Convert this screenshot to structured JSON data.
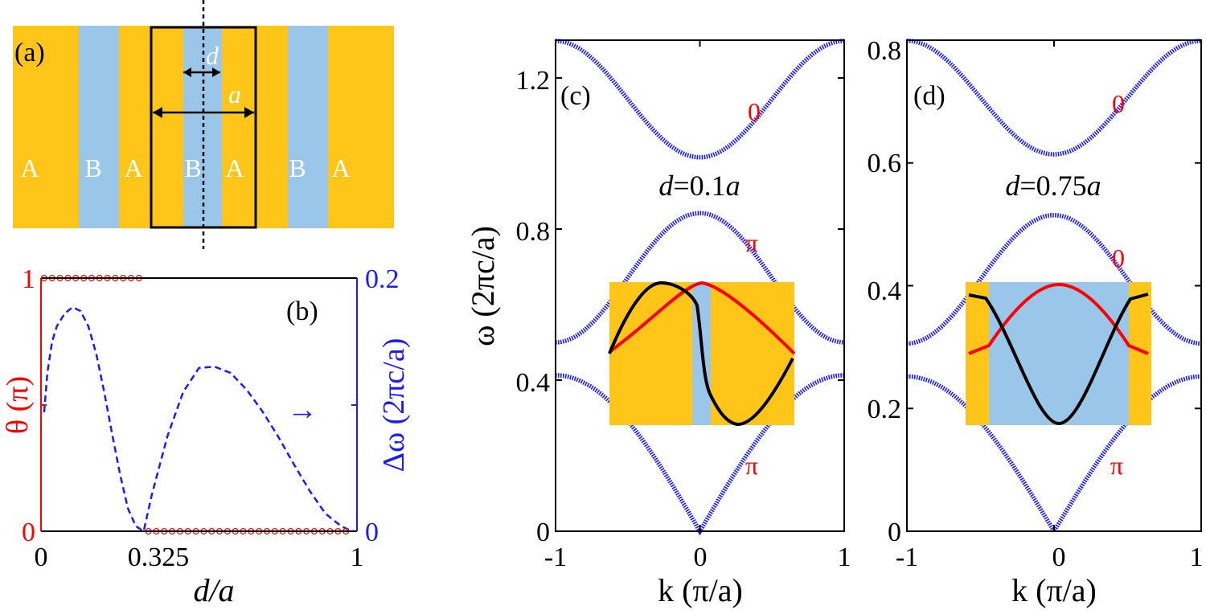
{
  "colors": {
    "layer_a": "#FFC519",
    "layer_b": "#9AC6EA",
    "red": "#FF0000",
    "blue": "#1A1AFF",
    "black": "#000000"
  },
  "panel_a": {
    "label": "(a)",
    "layers": [
      "A",
      "B",
      "A",
      "B",
      "A",
      "B",
      "A"
    ],
    "dim_d": "d",
    "dim_a": "a"
  },
  "panel_b": {
    "label": "(b)",
    "arrow": "→"
  },
  "panel_c": {
    "label": "(c)",
    "param_var": "d",
    "param_val": "=0.1",
    "param_unit": "a",
    "band_labels": [
      "0",
      "π",
      "π"
    ]
  },
  "panel_d": {
    "label": "(d)",
    "param_var": "d",
    "param_val": "=0.75",
    "param_unit": "a",
    "band_labels": [
      "0",
      "0",
      "π"
    ]
  },
  "chart_data": [
    {
      "id": "b",
      "type": "line",
      "title": "(b)",
      "xlabel": "d/a",
      "ylabel_left": "θ (π)",
      "ylabel_right": "Δω (2πc/a)",
      "xlim": [
        0,
        1
      ],
      "ylim_left": [
        0,
        1
      ],
      "ylim_right": [
        0,
        0.2
      ],
      "x_ticks": [
        "0",
        "0.325",
        "1"
      ],
      "y_ticks_left": [
        "0",
        "1"
      ],
      "y_ticks_right": [
        "0",
        "0.2"
      ],
      "series": [
        {
          "name": "θ (π)",
          "axis": "left",
          "style": "circles",
          "color": "#FF0000",
          "x": [
            0.01,
            0.035,
            0.06,
            0.085,
            0.11,
            0.135,
            0.16,
            0.185,
            0.21,
            0.235,
            0.26,
            0.285,
            0.31,
            0.34,
            0.365,
            0.39,
            0.415,
            0.44,
            0.465,
            0.49,
            0.515,
            0.54,
            0.565,
            0.59,
            0.615,
            0.64,
            0.665,
            0.69,
            0.715,
            0.74,
            0.765,
            0.79,
            0.815,
            0.84,
            0.865,
            0.89,
            0.915,
            0.94,
            0.965
          ],
          "y": [
            1,
            1,
            1,
            1,
            1,
            1,
            1,
            1,
            1,
            1,
            1,
            1,
            1,
            0,
            0,
            0,
            0,
            0,
            0,
            0,
            0,
            0,
            0,
            0,
            0,
            0,
            0,
            0,
            0,
            0,
            0,
            0,
            0,
            0,
            0,
            0,
            0,
            0,
            0
          ]
        },
        {
          "name": "Δω (2πc/a)",
          "axis": "right",
          "style": "dashed",
          "color": "#1A1AFF",
          "x": [
            0.01,
            0.02,
            0.035,
            0.05,
            0.075,
            0.1,
            0.125,
            0.15,
            0.175,
            0.2,
            0.225,
            0.25,
            0.275,
            0.3,
            0.325,
            0.35,
            0.4,
            0.45,
            0.5,
            0.55,
            0.6,
            0.65,
            0.7,
            0.75,
            0.8,
            0.85,
            0.9,
            0.95,
            0.975,
            0.99
          ],
          "y": [
            0.094,
            0.125,
            0.15,
            0.162,
            0.172,
            0.177,
            0.174,
            0.162,
            0.14,
            0.11,
            0.077,
            0.045,
            0.018,
            0.004,
            0.0,
            0.028,
            0.075,
            0.11,
            0.129,
            0.13,
            0.125,
            0.112,
            0.095,
            0.075,
            0.053,
            0.032,
            0.014,
            0.004,
            0.001,
            0.0
          ]
        }
      ],
      "annotations": [
        "(b)",
        "→"
      ]
    },
    {
      "id": "c",
      "type": "line",
      "title": "(c)",
      "xlabel": "k (π/a)",
      "ylabel": "ω (2πc/a)",
      "xlim": [
        -1,
        1
      ],
      "ylim": [
        0,
        1.3
      ],
      "x_ticks": [
        "-1",
        "0",
        "1"
      ],
      "y_ticks": [
        "0",
        "0.4",
        "0.8",
        "1.2"
      ],
      "series": [
        {
          "name": "band 1",
          "style": "dotted",
          "color": "#1A1AFF",
          "omega_min": 0.0,
          "omega_max": 0.413,
          "min_at": "center"
        },
        {
          "name": "band 2",
          "style": "dotted",
          "color": "#1A1AFF",
          "omega_min": 0.5,
          "omega_max": 0.842,
          "min_at": "edge"
        },
        {
          "name": "band 3",
          "style": "dotted",
          "color": "#1A1AFF",
          "omega_min": 0.99,
          "omega_max": 1.298,
          "min_at": "center"
        }
      ],
      "band_labels": [
        {
          "text": "0",
          "k": 0.37,
          "omega": 1.13
        },
        {
          "text": "π",
          "k": 0.37,
          "omega": 0.755
        },
        {
          "text": "π",
          "k": 0.37,
          "omega": 0.175
        }
      ],
      "annotations": [
        "d=0.1a"
      ],
      "inset": {
        "description": "field profiles across unit cell",
        "layers": [
          "A",
          "B",
          "A"
        ],
        "b_fraction": 0.1,
        "curves": [
          {
            "color": "#FF0000",
            "shape": "symmetric"
          },
          {
            "color": "#000000",
            "shape": "antisymmetric"
          }
        ]
      }
    },
    {
      "id": "d",
      "type": "line",
      "title": "(d)",
      "xlabel": "k (π/a)",
      "ylabel": "",
      "xlim": [
        -1,
        1
      ],
      "ylim": [
        0,
        0.8
      ],
      "x_ticks": [
        "-1",
        "0",
        "1"
      ],
      "y_ticks": [
        "0",
        "0.2",
        "0.4",
        "0.6",
        "0.8"
      ],
      "series": [
        {
          "name": "band 1",
          "style": "dotted",
          "color": "#1A1AFF",
          "omega_min": 0.0,
          "omega_max": 0.252,
          "min_at": "center"
        },
        {
          "name": "band 2",
          "style": "dotted",
          "color": "#1A1AFF",
          "omega_min": 0.306,
          "omega_max": 0.515,
          "min_at": "edge"
        },
        {
          "name": "band 3",
          "style": "dotted",
          "color": "#1A1AFF",
          "omega_min": 0.614,
          "omega_max": 0.799,
          "min_at": "center"
        }
      ],
      "band_labels": [
        {
          "text": "0",
          "k": 0.37,
          "omega": 0.695
        },
        {
          "text": "0",
          "k": 0.37,
          "omega": 0.465
        },
        {
          "text": "π",
          "k": 0.37,
          "omega": 0.105
        }
      ],
      "annotations": [
        "d=0.75a"
      ],
      "inset": {
        "description": "field profiles across unit cell",
        "layers": [
          "A",
          "B",
          "A"
        ],
        "b_fraction": 0.75,
        "curves": [
          {
            "color": "#FF0000",
            "shape": "symmetric"
          },
          {
            "color": "#000000",
            "shape": "symmetric-inverted"
          }
        ]
      }
    }
  ]
}
